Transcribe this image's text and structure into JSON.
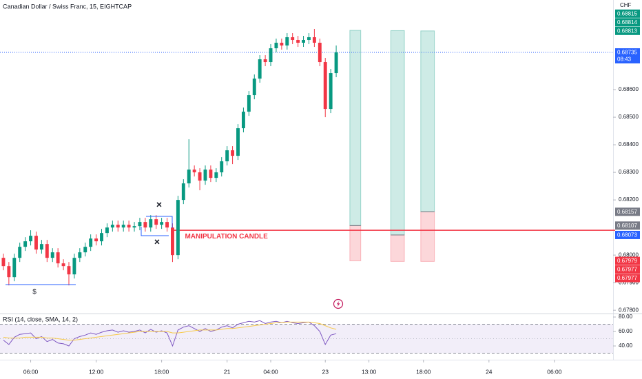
{
  "chart_data": [
    {
      "type": "candlestick",
      "title": "Canadian Dollar / Swiss Franc, 15, EIGHTCAP",
      "axis_label": "CHF",
      "up_color": "#089981",
      "down_color": "#f23645",
      "x": [
        0,
        2,
        4,
        6,
        8,
        10,
        12,
        14,
        16,
        18,
        20,
        22,
        24,
        26,
        28,
        30,
        32,
        34,
        36,
        38,
        40,
        42,
        44,
        46,
        48,
        50,
        52,
        54,
        56,
        58,
        60,
        62,
        64,
        66,
        68,
        70,
        72,
        74,
        76,
        78,
        80,
        82,
        84,
        86,
        88,
        90,
        92,
        94,
        96,
        98,
        100,
        102,
        104,
        106,
        108,
        110,
        112,
        114,
        116,
        118,
        120,
        122
      ],
      "open": [
        0.6799,
        0.6796,
        0.6792,
        0.6799,
        0.6803,
        0.6805,
        0.6807,
        0.6802,
        0.6804,
        0.6799,
        0.6801,
        0.6797,
        0.6796,
        0.6793,
        0.6799,
        0.6801,
        0.6803,
        0.6806,
        0.6805,
        0.6808,
        0.681,
        0.6811,
        0.681,
        0.6811,
        0.681,
        0.68105,
        0.6812,
        0.681,
        0.6813,
        0.6811,
        0.6812,
        0.681,
        0.68,
        0.682,
        0.6826,
        0.6831,
        0.683,
        0.6827,
        0.6831,
        0.6828,
        0.683,
        0.6834,
        0.6838,
        0.6836,
        0.6846,
        0.6852,
        0.6858,
        0.6864,
        0.6871,
        0.687,
        0.6875,
        0.6877,
        0.6876,
        0.6879,
        0.6878,
        0.6877,
        0.6878,
        0.6879,
        0.6877,
        0.687,
        0.6853,
        0.6866
      ],
      "high": [
        0.68005,
        0.67975,
        0.68005,
        0.68045,
        0.68065,
        0.6809,
        0.68085,
        0.68055,
        0.68055,
        0.68025,
        0.68025,
        0.67985,
        0.67975,
        0.68005,
        0.68025,
        0.68045,
        0.68075,
        0.68075,
        0.68095,
        0.68115,
        0.68125,
        0.68125,
        0.68125,
        0.68125,
        0.6812,
        0.68135,
        0.68135,
        0.68145,
        0.68145,
        0.68135,
        0.68135,
        0.68115,
        0.68215,
        0.68275,
        0.6842,
        0.68325,
        0.68315,
        0.68325,
        0.68325,
        0.68315,
        0.68355,
        0.68395,
        0.68395,
        0.68475,
        0.68535,
        0.68595,
        0.68655,
        0.68725,
        0.68725,
        0.68765,
        0.68785,
        0.68785,
        0.68805,
        0.68805,
        0.68795,
        0.68795,
        0.68805,
        0.6882,
        0.68785,
        0.68715,
        0.68675,
        0.6876
      ],
      "low": [
        0.67945,
        0.6789,
        0.67905,
        0.67975,
        0.68015,
        0.68035,
        0.68005,
        0.68005,
        0.67975,
        0.67975,
        0.67955,
        0.67945,
        0.6789,
        0.67915,
        0.67975,
        0.67995,
        0.68015,
        0.68035,
        0.68035,
        0.68065,
        0.68085,
        0.68085,
        0.68085,
        0.68085,
        0.68085,
        0.6809,
        0.68085,
        0.68085,
        0.68095,
        0.68095,
        0.68085,
        0.67975,
        0.67985,
        0.68185,
        0.68245,
        0.68285,
        0.68235,
        0.68255,
        0.68265,
        0.68265,
        0.68285,
        0.68325,
        0.6833,
        0.68345,
        0.68445,
        0.68505,
        0.68565,
        0.68625,
        0.68685,
        0.68685,
        0.68735,
        0.68745,
        0.68745,
        0.68765,
        0.68755,
        0.68755,
        0.68765,
        0.68755,
        0.68685,
        0.685,
        0.68515,
        0.68645
      ],
      "close": [
        0.6796,
        0.6792,
        0.6799,
        0.6803,
        0.6805,
        0.6807,
        0.6802,
        0.6804,
        0.6799,
        0.6801,
        0.6797,
        0.6796,
        0.6793,
        0.6799,
        0.6801,
        0.6803,
        0.6806,
        0.6805,
        0.6808,
        0.681,
        0.6811,
        0.681,
        0.6811,
        0.681,
        0.68105,
        0.6812,
        0.681,
        0.6813,
        0.6811,
        0.6812,
        0.681,
        0.68,
        0.682,
        0.6826,
        0.6831,
        0.683,
        0.6827,
        0.6831,
        0.6828,
        0.683,
        0.6834,
        0.6838,
        0.6836,
        0.6846,
        0.6852,
        0.6858,
        0.6864,
        0.6871,
        0.687,
        0.6875,
        0.6877,
        0.6876,
        0.6879,
        0.6878,
        0.6877,
        0.6878,
        0.6879,
        0.6877,
        0.687,
        0.6853,
        0.6866,
        0.68735
      ],
      "xlim": [
        -1.25,
        223.5
      ],
      "xticks": [
        {
          "value": 10,
          "label": "06:00"
        },
        {
          "value": 34,
          "label": "12:00"
        },
        {
          "value": 58,
          "label": "18:00"
        },
        {
          "value": 82,
          "label": "21"
        },
        {
          "value": 98,
          "label": "04:00"
        },
        {
          "value": 118,
          "label": "23"
        },
        {
          "value": 134,
          "label": "13:00"
        },
        {
          "value": 154,
          "label": "18:00"
        },
        {
          "value": 178,
          "label": "24"
        },
        {
          "value": 202,
          "label": "06:00"
        }
      ],
      "ylim": [
        0.67788,
        0.68925
      ],
      "yticks": [
        {
          "value": 0.686,
          "label": "0.68600"
        },
        {
          "value": 0.685,
          "label": "0.68500"
        },
        {
          "value": 0.684,
          "label": "0.68400"
        },
        {
          "value": 0.683,
          "label": "0.68300"
        },
        {
          "value": 0.682,
          "label": "0.68200"
        },
        {
          "value": 0.68,
          "label": "0.68000"
        },
        {
          "value": 0.679,
          "label": "0.67900"
        },
        {
          "value": 0.678,
          "label": "0.67800"
        }
      ],
      "grid": false,
      "price_line": {
        "value": 0.68735,
        "label": "0.68735",
        "countdown": "08:43",
        "color": "#2962ff"
      },
      "badges": [
        {
          "value": 0.68815,
          "label": "0.68815",
          "color": "#089981"
        },
        {
          "value": 0.68814,
          "label": "0.68814",
          "color": "#089981"
        },
        {
          "value": 0.68813,
          "label": "0.68813",
          "color": "#089981"
        },
        {
          "value": 0.68157,
          "label": "0.68157",
          "color": "#787b86"
        },
        {
          "value": 0.68107,
          "label": "0.68107",
          "color": "#787b86"
        },
        {
          "value": 0.68073,
          "label": "0.68073",
          "color": "#2962ff"
        },
        {
          "value": 0.67979,
          "label": "0.67979",
          "color": "#f23645"
        },
        {
          "value": 0.67977,
          "label": "0.67977",
          "color": "#f23645"
        },
        {
          "value": 0.67977,
          "label": "0.67977",
          "color": "#f23645"
        }
      ],
      "positions": [
        {
          "start": 127,
          "end": 131,
          "entry": 0.68107,
          "target": 0.68815,
          "stop": 0.67979
        },
        {
          "start": 142,
          "end": 147,
          "entry": 0.68073,
          "target": 0.68814,
          "stop": 0.67977
        },
        {
          "start": 153,
          "end": 158,
          "entry": 0.68157,
          "target": 0.68813,
          "stop": 0.67977
        }
      ],
      "annotation": {
        "value": 0.6809,
        "start": 62,
        "text": "MANIPULATION CANDLE",
        "color": "#f23645"
      },
      "symbols": [
        "×",
        "×",
        "$"
      ]
    },
    {
      "type": "line",
      "title": "RSI (14, close, SMA, 14, 2)",
      "x": [
        0,
        2,
        4,
        6,
        8,
        10,
        12,
        14,
        16,
        18,
        20,
        22,
        24,
        26,
        28,
        30,
        32,
        34,
        36,
        38,
        40,
        42,
        44,
        46,
        48,
        50,
        52,
        54,
        56,
        58,
        60,
        62,
        64,
        66,
        68,
        70,
        72,
        74,
        76,
        78,
        80,
        82,
        84,
        86,
        88,
        90,
        92,
        94,
        96,
        98,
        100,
        102,
        104,
        106,
        108,
        110,
        112,
        114,
        116,
        118,
        120,
        122
      ],
      "series": [
        {
          "color": "#7e57c2",
          "values": [
            48,
            42,
            52,
            56,
            57,
            58,
            50,
            53,
            46,
            49,
            44,
            43,
            40,
            50,
            53,
            55,
            58,
            56,
            59,
            61,
            62,
            59,
            61,
            59,
            60,
            62,
            58,
            63,
            59,
            61,
            58,
            40,
            62,
            66,
            68,
            64,
            60,
            64,
            60,
            62,
            66,
            68,
            65,
            70,
            72,
            74,
            73,
            75,
            71,
            73,
            74,
            72,
            74,
            72,
            71,
            72,
            73,
            68,
            60,
            42,
            55,
            57
          ]
        },
        {
          "color": "#f7c948",
          "values": [
            52,
            51,
            51,
            51,
            52,
            52,
            52,
            52,
            51,
            51,
            50,
            49,
            48,
            48,
            49,
            50,
            51,
            52,
            53,
            54,
            55,
            56,
            57,
            58,
            59,
            60,
            60,
            60,
            60,
            60,
            60,
            58,
            58,
            59,
            60,
            61,
            62,
            62,
            62,
            62,
            63,
            64,
            64,
            65,
            66,
            67,
            68,
            69,
            70,
            71,
            72,
            72,
            73,
            73,
            73,
            73,
            73,
            72,
            71,
            68,
            65,
            63
          ]
        }
      ],
      "xlim": [
        -1.25,
        223.5
      ],
      "ylim": [
        21,
        84.8
      ],
      "yticks": [
        {
          "value": 80,
          "label": "80.00"
        },
        {
          "value": 60,
          "label": "60.00"
        },
        {
          "value": 40,
          "label": "40.00"
        }
      ],
      "band": [
        30,
        70
      ],
      "midline": 50
    }
  ]
}
